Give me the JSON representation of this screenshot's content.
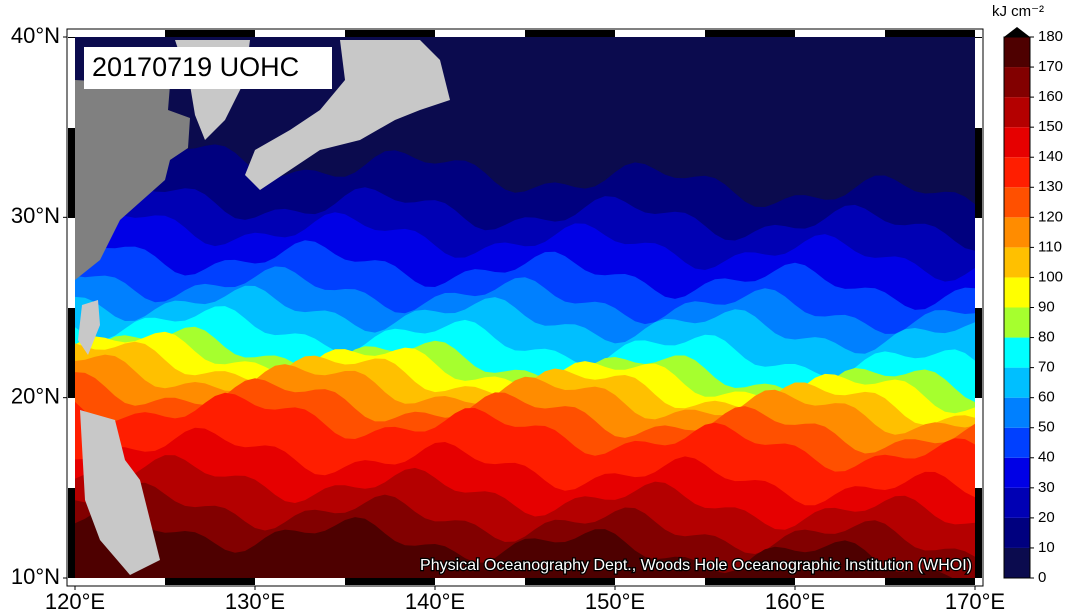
{
  "title": "20170719 UOHC",
  "credit": "Physical Oceanography Dept., Woods Hole Oceanographic Institution (WHOI)",
  "x_axis": {
    "ticks": [
      {
        "value": 120,
        "label": "120°E"
      },
      {
        "value": 130,
        "label": "130°E"
      },
      {
        "value": 140,
        "label": "140°E"
      },
      {
        "value": 150,
        "label": "150°E"
      },
      {
        "value": 160,
        "label": "160°E"
      },
      {
        "value": 170,
        "label": "170°E"
      }
    ],
    "lim": [
      120,
      170
    ]
  },
  "y_axis": {
    "ticks": [
      {
        "value": 10,
        "label": "10°N"
      },
      {
        "value": 20,
        "label": "20°N"
      },
      {
        "value": 30,
        "label": "30°N"
      },
      {
        "value": 40,
        "label": "40°N"
      }
    ],
    "lim": [
      10,
      40
    ]
  },
  "colorbar": {
    "unit": "kJ cm⁻²",
    "lim": [
      0,
      180
    ],
    "ticks": [
      0,
      10,
      20,
      30,
      40,
      50,
      60,
      70,
      80,
      90,
      100,
      110,
      120,
      130,
      140,
      150,
      160,
      170,
      180
    ],
    "colors": [
      "#0b0b4e",
      "#00007f",
      "#0000b4",
      "#0000e6",
      "#0040ff",
      "#0080ff",
      "#00bfff",
      "#00ffff",
      "#a6ff2e",
      "#ffff00",
      "#ffc000",
      "#ff8c00",
      "#ff5000",
      "#ff1e00",
      "#e60000",
      "#b40000",
      "#820000",
      "#4e0000"
    ],
    "over_color": "#000000"
  }
}
